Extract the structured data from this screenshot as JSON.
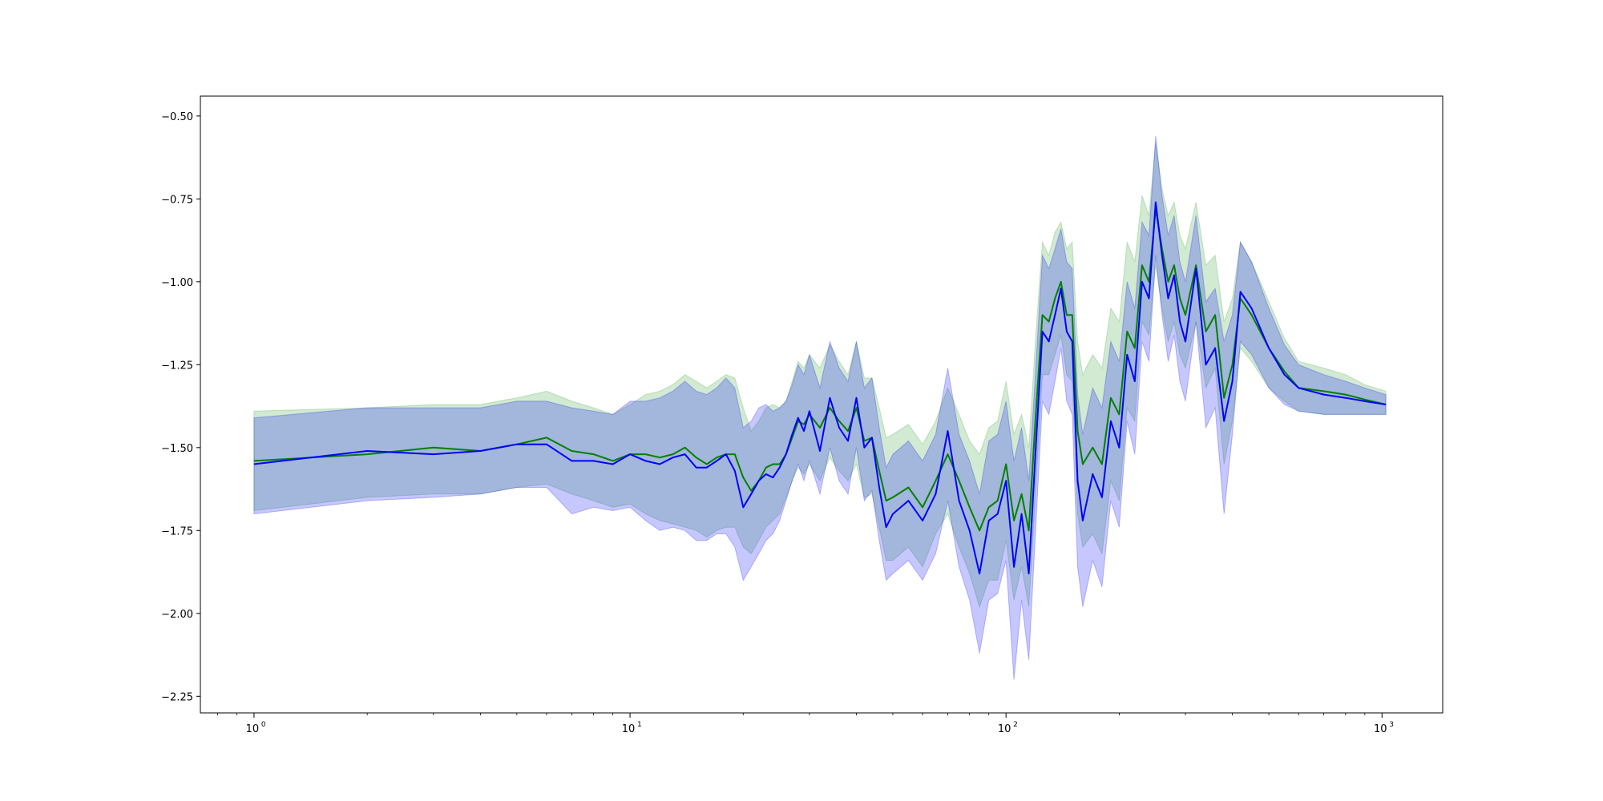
{
  "chart_data": {
    "type": "line",
    "title": "",
    "xlabel": "",
    "ylabel": "",
    "xscale": "log",
    "xlim": [
      0.72,
      1450
    ],
    "ylim": [
      -2.3,
      -0.44
    ],
    "grid": false,
    "legend": "none",
    "yticks": [
      -0.5,
      -0.75,
      -1.0,
      -1.25,
      -1.5,
      -1.75,
      -2.0,
      -2.25
    ],
    "ytick_labels": [
      "−0.50",
      "−0.75",
      "−1.00",
      "−1.25",
      "−1.50",
      "−1.75",
      "−2.00",
      "−2.25"
    ],
    "xticks": [
      {
        "base": "10",
        "exp": "0",
        "value": 1
      },
      {
        "base": "10",
        "exp": "1",
        "value": 10
      },
      {
        "base": "10",
        "exp": "2",
        "value": 100
      },
      {
        "base": "10",
        "exp": "3",
        "value": 1000
      }
    ],
    "series": [
      {
        "color": "#008000",
        "band_color": "#2ca02c",
        "x": [
          1,
          2,
          3,
          4,
          5,
          6,
          7,
          8,
          9,
          10,
          11,
          12,
          13,
          14,
          15,
          16,
          17,
          18,
          19,
          20,
          21,
          22,
          23,
          24,
          25,
          26,
          27,
          28,
          29,
          30,
          32,
          34,
          36,
          38,
          40,
          42,
          44,
          46,
          48,
          50,
          55,
          60,
          65,
          70,
          75,
          80,
          85,
          90,
          95,
          100,
          105,
          110,
          115,
          120,
          125,
          130,
          135,
          140,
          145,
          150,
          155,
          160,
          170,
          180,
          190,
          200,
          210,
          220,
          230,
          240,
          250,
          260,
          270,
          280,
          290,
          300,
          320,
          340,
          360,
          380,
          400,
          420,
          450,
          500,
          550,
          600,
          700,
          800,
          900,
          1024
        ],
        "y": [
          -1.54,
          -1.52,
          -1.5,
          -1.51,
          -1.49,
          -1.47,
          -1.51,
          -1.52,
          -1.54,
          -1.52,
          -1.52,
          -1.53,
          -1.52,
          -1.5,
          -1.53,
          -1.55,
          -1.53,
          -1.52,
          -1.52,
          -1.59,
          -1.63,
          -1.6,
          -1.56,
          -1.55,
          -1.55,
          -1.52,
          -1.47,
          -1.42,
          -1.43,
          -1.4,
          -1.44,
          -1.38,
          -1.42,
          -1.45,
          -1.38,
          -1.48,
          -1.47,
          -1.57,
          -1.66,
          -1.65,
          -1.62,
          -1.68,
          -1.6,
          -1.52,
          -1.6,
          -1.68,
          -1.75,
          -1.68,
          -1.66,
          -1.55,
          -1.72,
          -1.64,
          -1.75,
          -1.4,
          -1.1,
          -1.12,
          -1.05,
          -1.0,
          -1.1,
          -1.1,
          -1.45,
          -1.55,
          -1.5,
          -1.55,
          -1.35,
          -1.4,
          -1.15,
          -1.2,
          -0.95,
          -1.0,
          -0.78,
          -0.9,
          -1.0,
          -0.95,
          -1.05,
          -1.1,
          -0.95,
          -1.15,
          -1.1,
          -1.35,
          -1.25,
          -1.05,
          -1.1,
          -1.2,
          -1.27,
          -1.32,
          -1.33,
          -1.34,
          -1.355,
          -1.37
        ],
        "lower": [
          -1.69,
          -1.65,
          -1.64,
          -1.64,
          -1.62,
          -1.61,
          -1.64,
          -1.66,
          -1.68,
          -1.67,
          -1.7,
          -1.72,
          -1.73,
          -1.74,
          -1.75,
          -1.77,
          -1.75,
          -1.74,
          -1.74,
          -1.8,
          -1.82,
          -1.78,
          -1.74,
          -1.72,
          -1.7,
          -1.65,
          -1.6,
          -1.56,
          -1.58,
          -1.55,
          -1.6,
          -1.53,
          -1.57,
          -1.6,
          -1.55,
          -1.65,
          -1.64,
          -1.74,
          -1.84,
          -1.84,
          -1.8,
          -1.86,
          -1.76,
          -1.7,
          -1.8,
          -1.88,
          -1.98,
          -1.9,
          -1.9,
          -1.78,
          -1.96,
          -1.86,
          -1.98,
          -1.62,
          -1.28,
          -1.28,
          -1.22,
          -1.16,
          -1.28,
          -1.3,
          -1.7,
          -1.8,
          -1.76,
          -1.82,
          -1.6,
          -1.66,
          -1.38,
          -1.42,
          -1.12,
          -1.16,
          -0.95,
          -1.08,
          -1.18,
          -1.12,
          -1.22,
          -1.26,
          -1.12,
          -1.32,
          -1.26,
          -1.55,
          -1.42,
          -1.2,
          -1.24,
          -1.32,
          -1.36,
          -1.39,
          -1.4,
          -1.4,
          -1.4,
          -1.4
        ],
        "upper": [
          -1.39,
          -1.38,
          -1.37,
          -1.37,
          -1.35,
          -1.33,
          -1.36,
          -1.38,
          -1.4,
          -1.37,
          -1.34,
          -1.33,
          -1.31,
          -1.28,
          -1.3,
          -1.32,
          -1.3,
          -1.28,
          -1.29,
          -1.38,
          -1.45,
          -1.42,
          -1.38,
          -1.37,
          -1.38,
          -1.36,
          -1.3,
          -1.24,
          -1.26,
          -1.22,
          -1.26,
          -1.19,
          -1.24,
          -1.28,
          -1.18,
          -1.29,
          -1.29,
          -1.38,
          -1.47,
          -1.46,
          -1.43,
          -1.49,
          -1.42,
          -1.32,
          -1.4,
          -1.48,
          -1.52,
          -1.44,
          -1.42,
          -1.3,
          -1.46,
          -1.4,
          -1.5,
          -1.16,
          -0.88,
          -0.92,
          -0.85,
          -0.82,
          -0.9,
          -0.88,
          -1.18,
          -1.28,
          -1.22,
          -1.26,
          -1.08,
          -1.12,
          -0.88,
          -0.94,
          -0.74,
          -0.8,
          -0.58,
          -0.72,
          -0.8,
          -0.76,
          -0.86,
          -0.9,
          -0.76,
          -0.95,
          -0.92,
          -1.12,
          -1.05,
          -0.88,
          -0.94,
          -1.06,
          -1.17,
          -1.24,
          -1.26,
          -1.28,
          -1.31,
          -1.33
        ]
      },
      {
        "color": "#0000ff",
        "band_color": "#0000ff",
        "x": [
          1,
          2,
          3,
          4,
          5,
          6,
          7,
          8,
          9,
          10,
          11,
          12,
          13,
          14,
          15,
          16,
          17,
          18,
          19,
          20,
          21,
          22,
          23,
          24,
          25,
          26,
          27,
          28,
          29,
          30,
          32,
          34,
          36,
          38,
          40,
          42,
          44,
          46,
          48,
          50,
          55,
          60,
          65,
          70,
          75,
          80,
          85,
          90,
          95,
          100,
          105,
          110,
          115,
          120,
          125,
          130,
          135,
          140,
          145,
          150,
          155,
          160,
          170,
          180,
          190,
          200,
          210,
          220,
          230,
          240,
          250,
          260,
          270,
          280,
          290,
          300,
          320,
          340,
          360,
          380,
          400,
          420,
          450,
          500,
          550,
          600,
          700,
          800,
          900,
          1024
        ],
        "y": [
          -1.55,
          -1.51,
          -1.52,
          -1.51,
          -1.49,
          -1.49,
          -1.54,
          -1.54,
          -1.55,
          -1.52,
          -1.54,
          -1.55,
          -1.53,
          -1.52,
          -1.56,
          -1.56,
          -1.54,
          -1.52,
          -1.57,
          -1.68,
          -1.64,
          -1.6,
          -1.58,
          -1.59,
          -1.56,
          -1.52,
          -1.46,
          -1.41,
          -1.45,
          -1.39,
          -1.51,
          -1.35,
          -1.44,
          -1.48,
          -1.35,
          -1.5,
          -1.47,
          -1.62,
          -1.74,
          -1.7,
          -1.66,
          -1.72,
          -1.64,
          -1.45,
          -1.66,
          -1.75,
          -1.88,
          -1.72,
          -1.7,
          -1.6,
          -1.86,
          -1.7,
          -1.88,
          -1.5,
          -1.15,
          -1.18,
          -1.1,
          -1.02,
          -1.15,
          -1.18,
          -1.6,
          -1.72,
          -1.58,
          -1.65,
          -1.42,
          -1.5,
          -1.22,
          -1.3,
          -1.0,
          -1.05,
          -0.76,
          -0.92,
          -1.05,
          -0.98,
          -1.12,
          -1.18,
          -0.96,
          -1.25,
          -1.2,
          -1.42,
          -1.3,
          -1.03,
          -1.08,
          -1.2,
          -1.28,
          -1.32,
          -1.34,
          -1.35,
          -1.36,
          -1.37
        ],
        "lower": [
          -1.7,
          -1.66,
          -1.65,
          -1.64,
          -1.62,
          -1.62,
          -1.7,
          -1.68,
          -1.69,
          -1.68,
          -1.72,
          -1.75,
          -1.74,
          -1.75,
          -1.78,
          -1.78,
          -1.76,
          -1.76,
          -1.8,
          -1.9,
          -1.86,
          -1.82,
          -1.78,
          -1.76,
          -1.72,
          -1.66,
          -1.6,
          -1.55,
          -1.6,
          -1.54,
          -1.64,
          -1.5,
          -1.6,
          -1.64,
          -1.5,
          -1.66,
          -1.63,
          -1.78,
          -1.9,
          -1.88,
          -1.84,
          -1.9,
          -1.82,
          -1.66,
          -1.86,
          -1.96,
          -2.12,
          -1.96,
          -1.94,
          -1.84,
          -2.2,
          -1.96,
          -2.14,
          -1.74,
          -1.36,
          -1.4,
          -1.3,
          -1.2,
          -1.36,
          -1.4,
          -1.86,
          -1.98,
          -1.84,
          -1.92,
          -1.66,
          -1.74,
          -1.42,
          -1.52,
          -1.18,
          -1.24,
          -0.92,
          -1.1,
          -1.24,
          -1.16,
          -1.3,
          -1.36,
          -1.12,
          -1.44,
          -1.38,
          -1.7,
          -1.46,
          -1.18,
          -1.22,
          -1.32,
          -1.37,
          -1.39,
          -1.4,
          -1.4,
          -1.4,
          -1.4
        ],
        "upper": [
          -1.41,
          -1.38,
          -1.38,
          -1.38,
          -1.36,
          -1.36,
          -1.38,
          -1.39,
          -1.4,
          -1.36,
          -1.36,
          -1.35,
          -1.33,
          -1.3,
          -1.33,
          -1.34,
          -1.32,
          -1.29,
          -1.32,
          -1.44,
          -1.42,
          -1.38,
          -1.37,
          -1.39,
          -1.38,
          -1.36,
          -1.31,
          -1.25,
          -1.28,
          -1.22,
          -1.32,
          -1.18,
          -1.26,
          -1.3,
          -1.18,
          -1.32,
          -1.29,
          -1.44,
          -1.56,
          -1.52,
          -1.48,
          -1.54,
          -1.46,
          -1.26,
          -1.46,
          -1.54,
          -1.64,
          -1.48,
          -1.46,
          -1.36,
          -1.54,
          -1.44,
          -1.6,
          -1.26,
          -0.92,
          -0.96,
          -0.9,
          -0.84,
          -0.94,
          -0.96,
          -1.34,
          -1.46,
          -1.32,
          -1.38,
          -1.18,
          -1.24,
          -1.0,
          -1.08,
          -0.82,
          -0.86,
          -0.56,
          -0.74,
          -0.86,
          -0.8,
          -0.94,
          -1.0,
          -0.8,
          -1.06,
          -1.02,
          -1.18,
          -1.1,
          -0.88,
          -0.94,
          -1.08,
          -1.19,
          -1.25,
          -1.28,
          -1.3,
          -1.32,
          -1.34
        ]
      }
    ]
  }
}
